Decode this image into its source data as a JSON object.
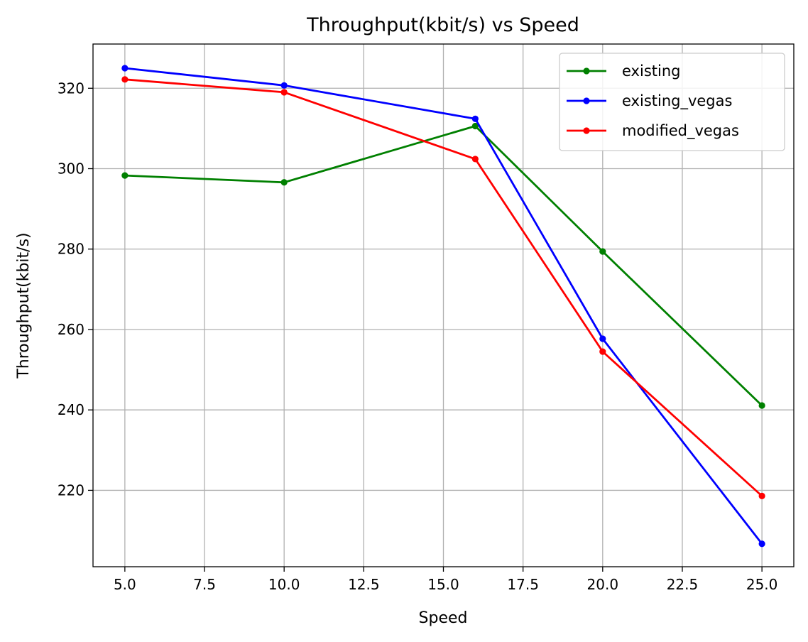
{
  "chart_data": {
    "type": "line",
    "title": "Throughput(kbit/s) vs Speed",
    "xlabel": "Speed",
    "ylabel": "Throughput(kbit/s)",
    "xlim": [
      4.0,
      26.0
    ],
    "ylim": [
      201.0,
      331.0
    ],
    "xticks": [
      5.0,
      7.5,
      10.0,
      12.5,
      15.0,
      17.5,
      20.0,
      22.5,
      25.0
    ],
    "xtick_labels": [
      "5.0",
      "7.5",
      "10.0",
      "12.5",
      "15.0",
      "17.5",
      "20.0",
      "22.5",
      "25.0"
    ],
    "yticks": [
      220,
      240,
      260,
      280,
      300,
      320
    ],
    "ytick_labels": [
      "220",
      "240",
      "260",
      "280",
      "300",
      "320"
    ],
    "grid": true,
    "legend_position": "top-right",
    "series": [
      {
        "name": "existing",
        "color": "#008000",
        "x": [
          5,
          10,
          16,
          20,
          25
        ],
        "y": [
          298.3,
          296.6,
          310.6,
          279.4,
          241.1
        ]
      },
      {
        "name": "existing_vegas",
        "color": "#0000ff",
        "x": [
          5,
          10,
          16,
          20,
          25
        ],
        "y": [
          325.0,
          320.7,
          312.4,
          257.7,
          206.7
        ]
      },
      {
        "name": "modified_vegas",
        "color": "#ff0000",
        "x": [
          5,
          10,
          16,
          20,
          25
        ],
        "y": [
          322.2,
          319.0,
          302.4,
          254.5,
          218.6
        ]
      }
    ]
  }
}
